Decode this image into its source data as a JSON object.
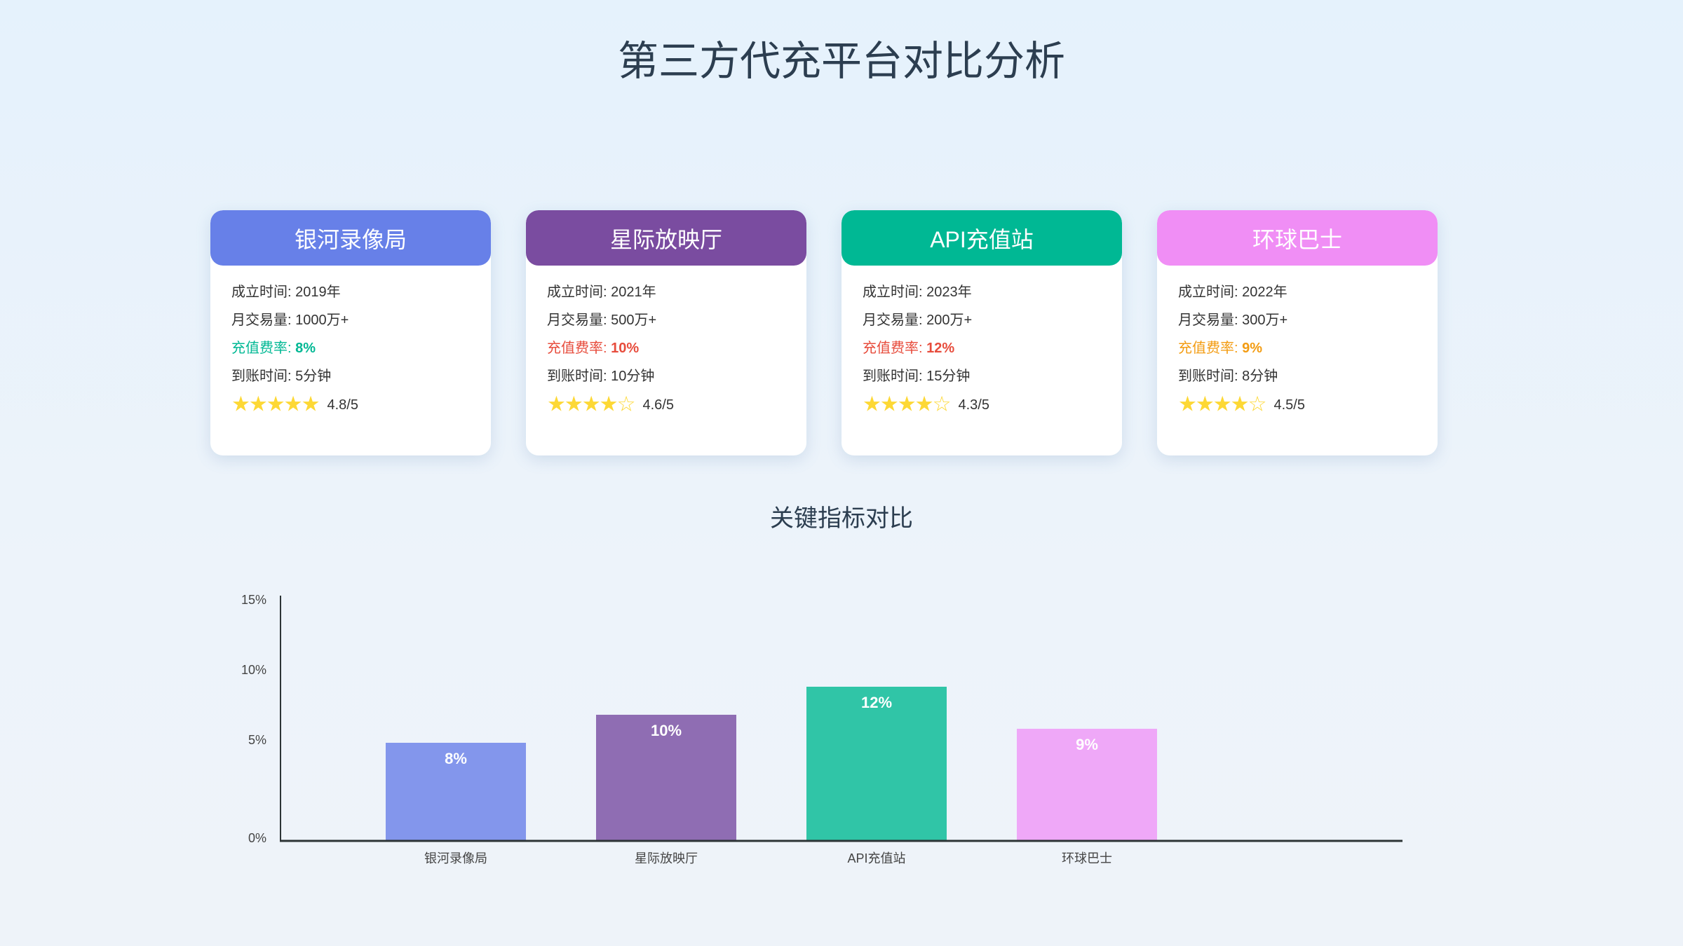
{
  "title": "第三方代充平台对比分析",
  "cards": [
    {
      "name": "银河录像局",
      "color": "#6780e8",
      "founded_label": "成立时间: ",
      "founded": "2019年",
      "volume_label": "月交易量: ",
      "volume": "1000万+",
      "rate_label": "充值费率: ",
      "rate": "8%",
      "rate_color": "#00b894",
      "arrival_label": "到账时间: ",
      "arrival": "5分钟",
      "stars": "★★★★★",
      "score": "4.8/5"
    },
    {
      "name": "星际放映厅",
      "color": "#7a4ca0",
      "founded_label": "成立时间: ",
      "founded": "2021年",
      "volume_label": "月交易量: ",
      "volume": "500万+",
      "rate_label": "充值费率: ",
      "rate": "10%",
      "rate_color": "#e74c3c",
      "arrival_label": "到账时间: ",
      "arrival": "10分钟",
      "stars": "★★★★☆",
      "score": "4.6/5"
    },
    {
      "name": "API充值站",
      "color": "#00b894",
      "founded_label": "成立时间: ",
      "founded": "2023年",
      "volume_label": "月交易量: ",
      "volume": "200万+",
      "rate_label": "充值费率: ",
      "rate": "12%",
      "rate_color": "#e74c3c",
      "arrival_label": "到账时间: ",
      "arrival": "15分钟",
      "stars": "★★★★☆",
      "score": "4.3/5"
    },
    {
      "name": "环球巴士",
      "color": "#f08ef5",
      "founded_label": "成立时间: ",
      "founded": "2022年",
      "volume_label": "月交易量: ",
      "volume": "300万+",
      "rate_label": "充值费率: ",
      "rate": "9%",
      "rate_color": "#f39c12",
      "arrival_label": "到账时间: ",
      "arrival": "8分钟",
      "stars": "★★★★☆",
      "score": "4.5/5"
    }
  ],
  "chart_data": {
    "type": "bar",
    "title": "关键指标对比",
    "categories": [
      "银河录像局",
      "星际放映厅",
      "API充值站",
      "环球巴士"
    ],
    "values": [
      8,
      10,
      12,
      9
    ],
    "data_labels": [
      "8%",
      "10%",
      "12%",
      "9%"
    ],
    "colors": [
      "#8396ec",
      "#8f6db3",
      "#30c5a7",
      "#efa8f8"
    ],
    "yticks": [
      "0%",
      "5%",
      "10%",
      "15%"
    ],
    "ylim": [
      0,
      15
    ],
    "grid": false,
    "legend": "none"
  }
}
